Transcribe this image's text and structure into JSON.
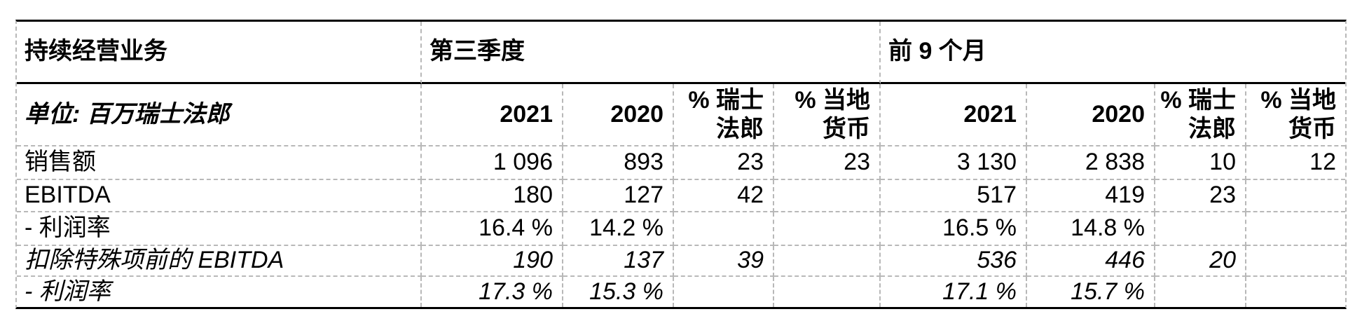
{
  "table": {
    "section_label": "持续经营业务",
    "section_q3": "第三季度",
    "section_9m": "前 9 个月",
    "unit_label": "单位: 百万瑞士法郎",
    "columns": {
      "q3_2021": "2021",
      "q3_2020": "2020",
      "q3_chf": "% 瑞士\n法郎",
      "q3_local": "% 当地\n货币",
      "m9_2021": "2021",
      "m9_2020": "2020",
      "m9_chf": "% 瑞士\n法郎",
      "m9_local": "% 当地\n货币"
    },
    "rows": [
      {
        "label": "销售额",
        "values": [
          "1 096",
          "893",
          "23",
          "23",
          "3 130",
          "2 838",
          "10",
          "12"
        ]
      },
      {
        "label": "EBITDA",
        "values": [
          "180",
          "127",
          "42",
          "",
          "517",
          "419",
          "23",
          ""
        ]
      },
      {
        "label": "- 利润率",
        "values": [
          "16.4 %",
          "14.2 %",
          "",
          "",
          "16.5 %",
          "14.8 %",
          "",
          ""
        ]
      },
      {
        "label": "扣除特殊项前的 EBITDA",
        "values": [
          "190",
          "137",
          "39",
          "",
          "536",
          "446",
          "20",
          ""
        ]
      },
      {
        "label": "- 利润率",
        "values": [
          "17.3 %",
          "15.3 %",
          "",
          "",
          "17.1 %",
          "15.7 %",
          "",
          ""
        ]
      }
    ]
  }
}
